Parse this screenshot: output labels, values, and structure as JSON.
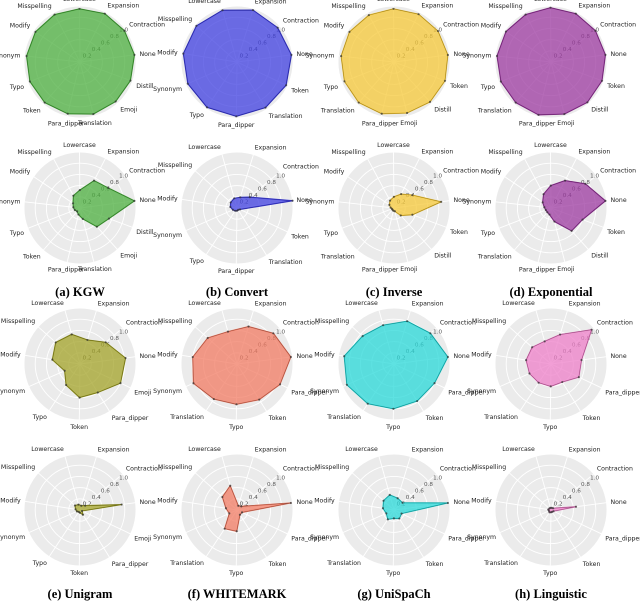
{
  "chart_data": [
    {
      "type": "radar",
      "caption": "(a) KGW",
      "axes": [
        "None",
        "Contraction",
        "Expansion",
        "Lowercase",
        "Misspelling",
        "Modify",
        "Synonym",
        "Typo",
        "Token",
        "Para_dipper",
        "Translation",
        "Emoji",
        "Distill"
      ],
      "radial_ticks": [
        "0.2",
        "0.4",
        "0.6",
        "0.8",
        "1.0"
      ],
      "rmax": 1.0,
      "grid": true,
      "color": "#4caf3f",
      "series": [
        {
          "values": [
            0.98,
            0.97,
            0.97,
            0.95,
            0.96,
            0.96,
            0.96,
            0.96,
            0.96,
            0.95,
            0.96,
            0.95,
            0.96
          ]
        },
        {
          "values": [
            0.98,
            0.62,
            0.55,
            0.32,
            0.25,
            0.15,
            0.12,
            0.1,
            0.08,
            0.12,
            0.2,
            0.45,
            0.55
          ]
        }
      ]
    },
    {
      "type": "radar",
      "caption": "(b) Convert",
      "axes": [
        "None",
        "Contraction",
        "Expansion",
        "Lowercase",
        "Misspelling",
        "Modify",
        "Synonym",
        "Typo",
        "Para_dipper",
        "Translation",
        "Token"
      ],
      "radial_ticks": [
        "0.2",
        "0.4",
        "0.6",
        "0.8",
        "1.0"
      ],
      "rmax": 1.0,
      "grid": true,
      "color": "#3f3fe0",
      "series": [
        {
          "values": [
            0.98,
            0.95,
            0.97,
            0.96,
            0.97,
            0.97,
            0.96,
            0.97,
            0.97,
            0.96,
            0.97
          ]
        },
        {
          "values": [
            1.0,
            0.3,
            0.2,
            0.18,
            0.15,
            0.12,
            0.08,
            0.06,
            0.05,
            0.04,
            0.06
          ]
        }
      ]
    },
    {
      "type": "radar",
      "caption": "(c) Inverse",
      "axes": [
        "None",
        "Contraction",
        "Expansion",
        "Lowercase",
        "Misspelling",
        "Modify",
        "Synonym",
        "Typo",
        "Translation",
        "Para_dipper",
        "Emoji",
        "Distill",
        "Token"
      ],
      "radial_ticks": [
        "0.2",
        "0.4",
        "0.6",
        "0.8",
        "1.0"
      ],
      "rmax": 1.0,
      "grid": true,
      "color": "#f5c838",
      "series": [
        {
          "values": [
            0.97,
            0.96,
            0.96,
            0.95,
            0.95,
            0.96,
            0.95,
            0.95,
            0.96,
            0.95,
            0.94,
            0.96,
            0.97
          ]
        },
        {
          "values": [
            0.85,
            0.4,
            0.28,
            0.2,
            0.15,
            0.1,
            0.06,
            0.04,
            0.04,
            0.05,
            0.06,
            0.18,
            0.35
          ]
        }
      ]
    },
    {
      "type": "radar",
      "caption": "(d) Exponential",
      "axes": [
        "None",
        "Contraction",
        "Expansion",
        "Lowercase",
        "Misspelling",
        "Modify",
        "Synonym",
        "Typo",
        "Translation",
        "Para_dipper",
        "Emoji",
        "Distill",
        "Token"
      ],
      "radial_ticks": [
        "0.2",
        "0.4",
        "0.6",
        "0.8",
        "1.0"
      ],
      "rmax": 1.0,
      "grid": true,
      "color": "#9c3aa0",
      "series": [
        {
          "values": [
            0.98,
            0.97,
            0.97,
            0.97,
            0.96,
            0.97,
            0.97,
            0.96,
            0.96,
            0.97,
            0.96,
            0.97,
            0.97
          ]
        },
        {
          "values": [
            0.98,
            0.75,
            0.55,
            0.4,
            0.28,
            0.18,
            0.12,
            0.1,
            0.1,
            0.12,
            0.25,
            0.55,
            0.6
          ]
        }
      ]
    },
    {
      "type": "radar",
      "caption": "(e) Unigram",
      "axes": [
        "None",
        "Contraction",
        "Expansion",
        "Lowercase",
        "Misspelling",
        "Modify",
        "Synonym",
        "Typo",
        "Token",
        "Para_dipper",
        "Emoji"
      ],
      "radial_ticks": [
        "0.2",
        "0.4",
        "0.6",
        "0.8",
        "1.0"
      ],
      "rmax": 1.0,
      "grid": true,
      "color": "#a3a328",
      "series": [
        {
          "values": [
            0.82,
            0.6,
            0.45,
            0.55,
            0.58,
            0.5,
            0.3,
            0.45,
            0.6,
            0.6,
            0.8
          ]
        },
        {
          "values": [
            0.75,
            0.12,
            0.08,
            0.1,
            0.12,
            0.08,
            0.06,
            0.04,
            0.05,
            0.1,
            0.04
          ]
        }
      ]
    },
    {
      "type": "radar",
      "caption": "(f) WHITEMARK",
      "axes": [
        "None",
        "Contraction",
        "Expansion",
        "Lowercase",
        "Misspelling",
        "Modify",
        "Synonym",
        "Translation",
        "Typo",
        "Token",
        "Para_dipper"
      ],
      "radial_ticks": [
        "0.2",
        "0.4",
        "0.6",
        "0.8",
        "1.0"
      ],
      "rmax": 1.0,
      "grid": true,
      "color": "#f27b63",
      "series": [
        {
          "values": [
            0.97,
            0.85,
            0.7,
            0.6,
            0.7,
            0.8,
            0.85,
            0.75,
            0.72,
            0.75,
            0.85
          ]
        },
        {
          "values": [
            0.97,
            0.1,
            0.08,
            0.45,
            0.35,
            0.2,
            0.15,
            0.4,
            0.38,
            0.1,
            0.1
          ]
        }
      ]
    },
    {
      "type": "radar",
      "caption": "(g) UniSpaCh",
      "axes": [
        "None",
        "Contraction",
        "Expansion",
        "Lowercase",
        "Misspelling",
        "Modify",
        "Synonym",
        "Translation",
        "Typo",
        "Token",
        "Para_dipper"
      ],
      "radial_ticks": [
        "0.2",
        "0.4",
        "0.6",
        "0.8",
        "1.0"
      ],
      "rmax": 1.0,
      "grid": true,
      "color": "#28d8d8",
      "series": [
        {
          "values": [
            0.97,
            0.85,
            0.8,
            0.72,
            0.75,
            0.9,
            0.92,
            0.85,
            0.8,
            0.78,
            0.8
          ]
        },
        {
          "values": [
            0.97,
            0.2,
            0.22,
            0.28,
            0.25,
            0.2,
            0.15,
            0.2,
            0.15,
            0.18,
            0.15
          ]
        }
      ]
    },
    {
      "type": "radar",
      "caption": "(h) Linguistic",
      "axes": [
        "None",
        "Contraction",
        "Expansion",
        "Lowercase",
        "Misspelling",
        "Modify",
        "Synonym",
        "Translation",
        "Typo",
        "Token",
        "Para_dipper"
      ],
      "radial_ticks": [
        "0.2",
        "0.4",
        "0.6",
        "0.8",
        "1.0"
      ],
      "rmax": 1.0,
      "grid": true,
      "color": "#ee7fc8",
      "series": [
        {
          "values": [
            0.55,
            0.95,
            0.55,
            0.42,
            0.45,
            0.45,
            0.42,
            0.4,
            0.4,
            0.38,
            0.55
          ]
        },
        {
          "values": [
            0.45,
            0.05,
            0.04,
            0.04,
            0.04,
            0.05,
            0.04,
            0.05,
            0.04,
            0.04,
            0.05
          ]
        }
      ]
    }
  ]
}
